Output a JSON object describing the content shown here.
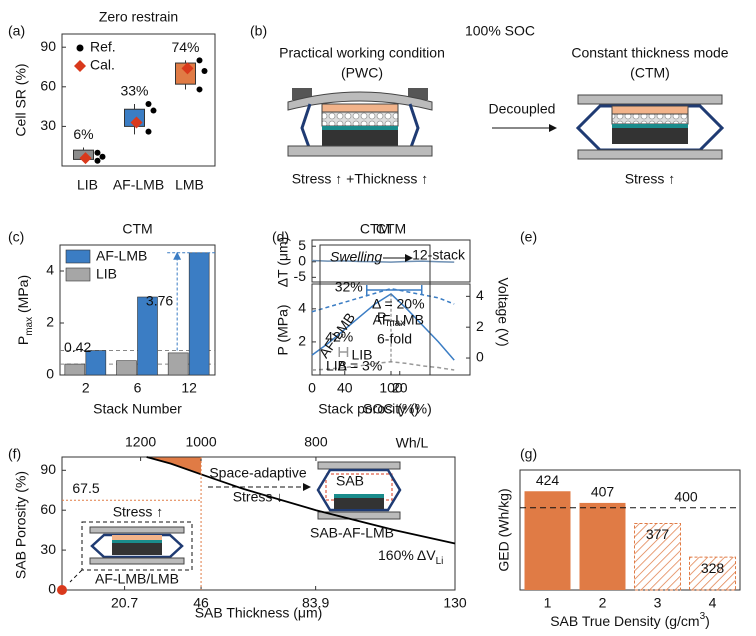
{
  "panels": [
    "(a)",
    "(b)",
    "(c)",
    "(d)",
    "(e)",
    "(f)",
    "(g)"
  ],
  "diagram": {
    "title": "100% SOC",
    "left": {
      "title": "Practical working condition",
      "abbr": "(PWC)",
      "caption": "Stress ↑ +Thickness ↑"
    },
    "arrow": "Decoupled",
    "right": {
      "title": "Constant thickness mode",
      "abbr": "(CTM)",
      "caption": "Stress ↑"
    }
  },
  "chart_data": [
    {
      "type": "box",
      "title": "Zero restrain",
      "ylabel": "Cell SR (%)",
      "categories": [
        "LIB",
        "AF-LMB",
        "LMB"
      ],
      "colors": [
        "#8c8c8c",
        "#3b7dc4",
        "#e07b45"
      ],
      "label_colors": [
        "#111111",
        "#3b7dc4",
        "#d9391c"
      ],
      "boxes": [
        {
          "low": 4,
          "q1": 5,
          "q3": 12,
          "high": 14
        },
        {
          "low": 24,
          "q1": 30,
          "q3": 43,
          "high": 47
        },
        {
          "low": 58,
          "q1": 62,
          "q3": 78,
          "high": 80
        }
      ],
      "series": [
        {
          "name": "Ref.",
          "color": "#000000",
          "values": [
            [
              4,
              7,
              10
            ],
            [
              26,
              42,
              47
            ],
            [
              58,
              72,
              80
            ]
          ]
        },
        {
          "name": "Cal.",
          "color": "#d9391c",
          "values": [
            6,
            33,
            74
          ],
          "value_labels": [
            "6%",
            "33%",
            "74%"
          ]
        }
      ],
      "ylim": [
        0,
        100
      ],
      "yticks": [
        30,
        60,
        90
      ]
    },
    {
      "type": "grouped_bar",
      "title": "CTM",
      "ylabel": [
        "P",
        "max",
        " (MPa)"
      ],
      "xlabel": "Stack Number",
      "categories": [
        "2",
        "6",
        "12"
      ],
      "series": [
        {
          "name": "AF-LMB",
          "color": "#3b7dc4",
          "values": [
            0.94,
            3.0,
            4.7
          ]
        },
        {
          "name": "LIB",
          "color": "#a6a6a6",
          "values": [
            0.42,
            0.55,
            0.85
          ]
        }
      ],
      "ref_lines": [
        0.42,
        0.94
      ],
      "annotations": [
        "0.42",
        "3.76"
      ],
      "ylim": [
        0,
        5
      ],
      "yticks": [
        0,
        2,
        4
      ]
    },
    {
      "type": "line",
      "title": "CTM",
      "xlabel": "SOC (%)",
      "x": [
        0,
        20,
        40,
        60,
        80,
        100,
        120,
        140,
        160,
        180
      ],
      "xlim": [
        0,
        200
      ],
      "xticks": [
        0,
        100
      ],
      "top": {
        "ylabel": "ΔT (μm)",
        "ylim": [
          -6.5,
          7
        ],
        "yticks": [
          5,
          0,
          -5
        ],
        "series": [
          {
            "name": "12-stack",
            "color": "#6d8fb3",
            "values": [
              0.4,
              0.2,
              0.3,
              0.1,
              0,
              -0.1,
              0.1,
              0.2,
              0,
              -0.1
            ]
          }
        ]
      },
      "ylabel": "P (MPa)",
      "ylim": [
        0,
        5.5
      ],
      "yticks": [
        2,
        4
      ],
      "y2label": "Voltage (V)",
      "y2lim": [
        -1.1,
        4.8
      ],
      "y2ticks": [
        0,
        2,
        4
      ],
      "series": [
        {
          "name": "AF-LMB",
          "color": "#3b7dc4",
          "values": [
            1.2,
            1.9,
            2.7,
            3.5,
            4.3,
            4.9,
            4.0,
            3.0,
            2.0,
            0.9
          ]
        },
        {
          "name": "LIB",
          "color": "#999999",
          "dash": true,
          "values": [
            0.3,
            0.35,
            0.45,
            0.55,
            0.7,
            0.8,
            0.7,
            0.55,
            0.45,
            0.3
          ]
        },
        {
          "color": "#3b7dc4",
          "dash": true,
          "axis": "y2",
          "values": [
            3.0,
            3.3,
            3.6,
            3.9,
            4.2,
            4.5,
            4.3,
            4.1,
            3.9,
            3.5
          ]
        }
      ],
      "annotations": {
        "pmax": [
          "P",
          "max"
        ],
        "fold": "6-fold"
      }
    },
    {
      "type": "interval",
      "title": "CTM",
      "xlabel": "Stack porosity (%)",
      "annotation": "Swelling",
      "xlim": [
        49,
        9
      ],
      "xticks": [
        40,
        20
      ],
      "series": [
        {
          "name": "AF-LMB",
          "color": "#3b7dc4",
          "start": 32,
          "end": 12,
          "start_label": "32%",
          "delta_label": "Δ = 20%"
        },
        {
          "name": "LIB",
          "color": "#999999",
          "start": 42,
          "end": 39,
          "start_label": "42%",
          "delta_label": "Δ = 3%"
        }
      ]
    },
    {
      "type": "line",
      "xlabel": "SAB Thickness (μm)",
      "ylabel": "SAB Porosity (%)",
      "x2label": "Wh/L",
      "xlim": [
        0,
        130
      ],
      "xticks": [
        20.7,
        46,
        83.9,
        130
      ],
      "x2ticks": [
        {
          "value": 26,
          "label": "1200"
        },
        {
          "value": 46,
          "label": "1000"
        },
        {
          "value": 84,
          "label": "800"
        }
      ],
      "ylim": [
        0,
        100
      ],
      "yticks": [
        0,
        30,
        60,
        90
      ],
      "x": [
        28,
        36,
        46,
        60,
        84,
        110,
        130
      ],
      "series": [
        {
          "color": "#000000",
          "values": [
            100,
            95,
            87,
            76,
            60,
            45,
            35
          ]
        }
      ],
      "fill_color": "#e07b45",
      "highlight": {
        "x": 46,
        "y": 67.5,
        "label": "67.5",
        "color": "#e07b45"
      },
      "origin_point": [
        0,
        0
      ],
      "curve_label": [
        "160% ΔV",
        "Li"
      ],
      "annotations": [
        "Space-adaptive",
        "Stress ↓",
        "SAB",
        "SAB-AF-LMB",
        "Stress ↑",
        "AF-LMB/LMB"
      ]
    },
    {
      "type": "bar",
      "ylabel": "GED (Wh/kg)",
      "xlabel": [
        "SAB True Density (g/cm",
        "3",
        ")"
      ],
      "categories": [
        "1",
        "2",
        "3",
        "4"
      ],
      "values": [
        424,
        407,
        377,
        328
      ],
      "hatched": [
        false,
        false,
        true,
        true
      ],
      "color": "#e07b45",
      "ylim": [
        280,
        455
      ],
      "ref_line": 400
    }
  ]
}
